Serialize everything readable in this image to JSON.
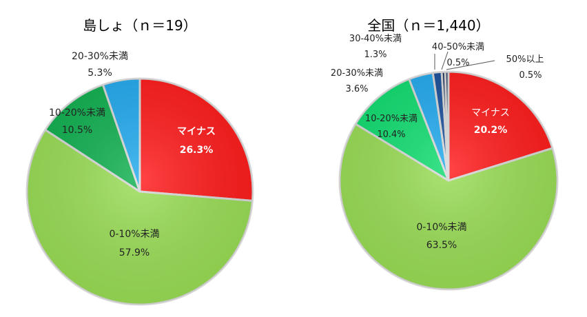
{
  "chart_data": [
    {
      "type": "pie",
      "title": "島しょ（ｎ＝19）",
      "categories": [
        "マイナス",
        "0-10%未満",
        "10-20%未満",
        "20-30%未満"
      ],
      "values": [
        26.3,
        57.9,
        10.5,
        5.3
      ],
      "value_labels": [
        "26.3%",
        "57.9%",
        "10.5%",
        "5.3%"
      ],
      "colors": [
        "#ff1a1a",
        "#99dd55",
        "#10b050",
        "#22aaee"
      ]
    },
    {
      "type": "pie",
      "title": "全国（ｎ＝1,440）",
      "categories": [
        "マイナス",
        "0-10%未満",
        "10-20%未満",
        "20-30%未満",
        "30-40%未満",
        "40-50%未満",
        "50%以上"
      ],
      "values": [
        20.2,
        63.5,
        10.4,
        3.6,
        1.3,
        0.5,
        0.5
      ],
      "value_labels": [
        "20.2%",
        "63.5%",
        "10.4%",
        "3.6%",
        "1.3%",
        "0.5%",
        "0.5%"
      ],
      "colors": [
        "#ff1a1a",
        "#99dd55",
        "#10dd70",
        "#22aaee",
        "#1a4f9a",
        "#0a2055",
        "#334466"
      ]
    }
  ]
}
